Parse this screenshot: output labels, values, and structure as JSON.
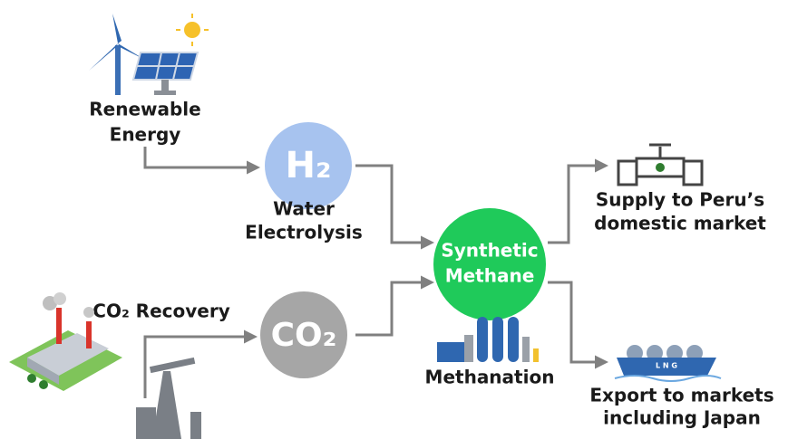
{
  "nodes": [
    {
      "id": "renewable",
      "label": [
        "Renewable",
        "Energy"
      ]
    },
    {
      "id": "h2",
      "label": [
        "H₂"
      ],
      "caption": [
        "Water",
        "Electrolysis"
      ]
    },
    {
      "id": "co2-recovery",
      "label": [
        "CO₂ Recovery"
      ]
    },
    {
      "id": "co2",
      "label": [
        "CO₂"
      ]
    },
    {
      "id": "methane",
      "label": [
        "Synthetic",
        "Methane"
      ],
      "caption": [
        "Methanation"
      ]
    },
    {
      "id": "domestic",
      "label": [
        "Supply to Peru’s",
        "domestic market"
      ]
    },
    {
      "id": "export",
      "label": [
        "Export to markets",
        "including Japan"
      ],
      "ship_text": "L N G"
    }
  ]
}
